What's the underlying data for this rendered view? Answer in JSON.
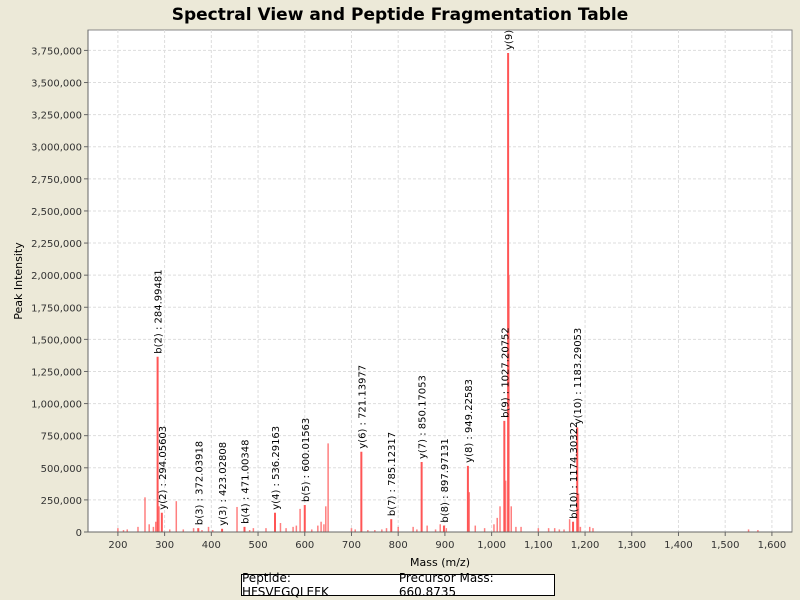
{
  "chart_data": {
    "type": "bar",
    "title": "Spectral View and Peptide Fragmentation Table",
    "xlabel": "Mass (m/z)",
    "ylabel": "Peak Intensity",
    "xlim": [
      136,
      1643
    ],
    "ylim": [
      0,
      3909000
    ],
    "xticks": [
      200,
      300,
      400,
      500,
      600,
      700,
      800,
      900,
      1000,
      1100,
      1200,
      1300,
      1400,
      1500,
      1600
    ],
    "xtick_labels": [
      "200",
      "300",
      "400",
      "500",
      "600",
      "700",
      "800",
      "900",
      "1,000",
      "1,100",
      "1,200",
      "1,300",
      "1,400",
      "1,500",
      "1,600"
    ],
    "yticks": [
      0,
      250000,
      500000,
      750000,
      1000000,
      1250000,
      1500000,
      1750000,
      2000000,
      2250000,
      2500000,
      2750000,
      3000000,
      3250000,
      3500000,
      3750000
    ],
    "ytick_labels": [
      "0",
      "250,000",
      "500,000",
      "750,000",
      "1,000,000",
      "1,250,000",
      "1,500,000",
      "1,750,000",
      "2,000,000",
      "2,250,000",
      "2,500,000",
      "2,750,000",
      "3,000,000",
      "3,250,000",
      "3,500,000",
      "3,750,000"
    ],
    "grid": true,
    "peak_color": "#ff5555",
    "annotated_peaks": [
      {
        "mass": 284.99481,
        "intensity": 1365000,
        "label": "b(2) : 284.99481"
      },
      {
        "mass": 294.05603,
        "intensity": 150000,
        "label": "y(2) : 294.05603"
      },
      {
        "mass": 372.03918,
        "intensity": 30000,
        "label": "b(3) : 372.03918"
      },
      {
        "mass": 423.02808,
        "intensity": 25000,
        "label": "y(3) : 423.02808"
      },
      {
        "mass": 471.00348,
        "intensity": 40000,
        "label": "b(4) : 471.00348"
      },
      {
        "mass": 536.29163,
        "intensity": 150000,
        "label": "y(4) : 536.29163"
      },
      {
        "mass": 600.01563,
        "intensity": 210000,
        "label": "b(5) : 600.01563"
      },
      {
        "mass": 721.13977,
        "intensity": 625000,
        "label": "y(6) : 721.13977"
      },
      {
        "mass": 785.12317,
        "intensity": 100000,
        "label": "b(7) : 785.12317"
      },
      {
        "mass": 850.17053,
        "intensity": 545000,
        "label": "y(7) : 850.17053"
      },
      {
        "mass": 897.97131,
        "intensity": 50000,
        "label": "b(8) : 897.97131"
      },
      {
        "mass": 949.22583,
        "intensity": 515000,
        "label": "y(8) : 949.22583"
      },
      {
        "mass": 1027.20752,
        "intensity": 865000,
        "label": "b(9) : 1027.20752"
      },
      {
        "mass": 1035.3,
        "intensity": 3730000,
        "label": "y(9)"
      },
      {
        "mass": 1174.30322,
        "intensity": 80000,
        "label": "b(10) : 1174.30322"
      },
      {
        "mass": 1183.29053,
        "intensity": 815000,
        "label": "y(10) : 1183.29053"
      }
    ],
    "other_peaks": [
      [
        200,
        30000
      ],
      [
        212,
        15000
      ],
      [
        220,
        20000
      ],
      [
        243,
        40000
      ],
      [
        258,
        270000
      ],
      [
        267,
        60000
      ],
      [
        276,
        40000
      ],
      [
        281,
        80000
      ],
      [
        288,
        200000
      ],
      [
        311,
        20000
      ],
      [
        325,
        240000
      ],
      [
        340,
        20000
      ],
      [
        362,
        30000
      ],
      [
        380,
        15000
      ],
      [
        394,
        40000
      ],
      [
        403,
        15000
      ],
      [
        455,
        195000
      ],
      [
        482,
        15000
      ],
      [
        490,
        30000
      ],
      [
        517,
        30000
      ],
      [
        548,
        70000
      ],
      [
        560,
        30000
      ],
      [
        575,
        40000
      ],
      [
        582,
        50000
      ],
      [
        590,
        180000
      ],
      [
        615,
        20000
      ],
      [
        628,
        50000
      ],
      [
        635,
        80000
      ],
      [
        641,
        60000
      ],
      [
        645,
        200000
      ],
      [
        650,
        690000
      ],
      [
        700,
        30000
      ],
      [
        708,
        20000
      ],
      [
        735,
        15000
      ],
      [
        750,
        15000
      ],
      [
        765,
        20000
      ],
      [
        775,
        30000
      ],
      [
        800,
        40000
      ],
      [
        832,
        40000
      ],
      [
        840,
        20000
      ],
      [
        862,
        50000
      ],
      [
        880,
        20000
      ],
      [
        890,
        60000
      ],
      [
        903,
        30000
      ],
      [
        952,
        310000
      ],
      [
        965,
        50000
      ],
      [
        985,
        30000
      ],
      [
        1005,
        60000
      ],
      [
        1012,
        110000
      ],
      [
        1018,
        200000
      ],
      [
        1030,
        400000
      ],
      [
        1037,
        2000000
      ],
      [
        1042,
        200000
      ],
      [
        1052,
        40000
      ],
      [
        1063,
        40000
      ],
      [
        1100,
        30000
      ],
      [
        1122,
        30000
      ],
      [
        1135,
        30000
      ],
      [
        1145,
        20000
      ],
      [
        1155,
        20000
      ],
      [
        1167,
        100000
      ],
      [
        1186,
        300000
      ],
      [
        1190,
        40000
      ],
      [
        1210,
        40000
      ],
      [
        1217,
        30000
      ],
      [
        1550,
        20000
      ],
      [
        1570,
        15000
      ]
    ],
    "legend": {
      "peptide": "Peptide: HFSVEGQLEFK",
      "precursor": "Precursor Mass: 660.8735"
    }
  }
}
